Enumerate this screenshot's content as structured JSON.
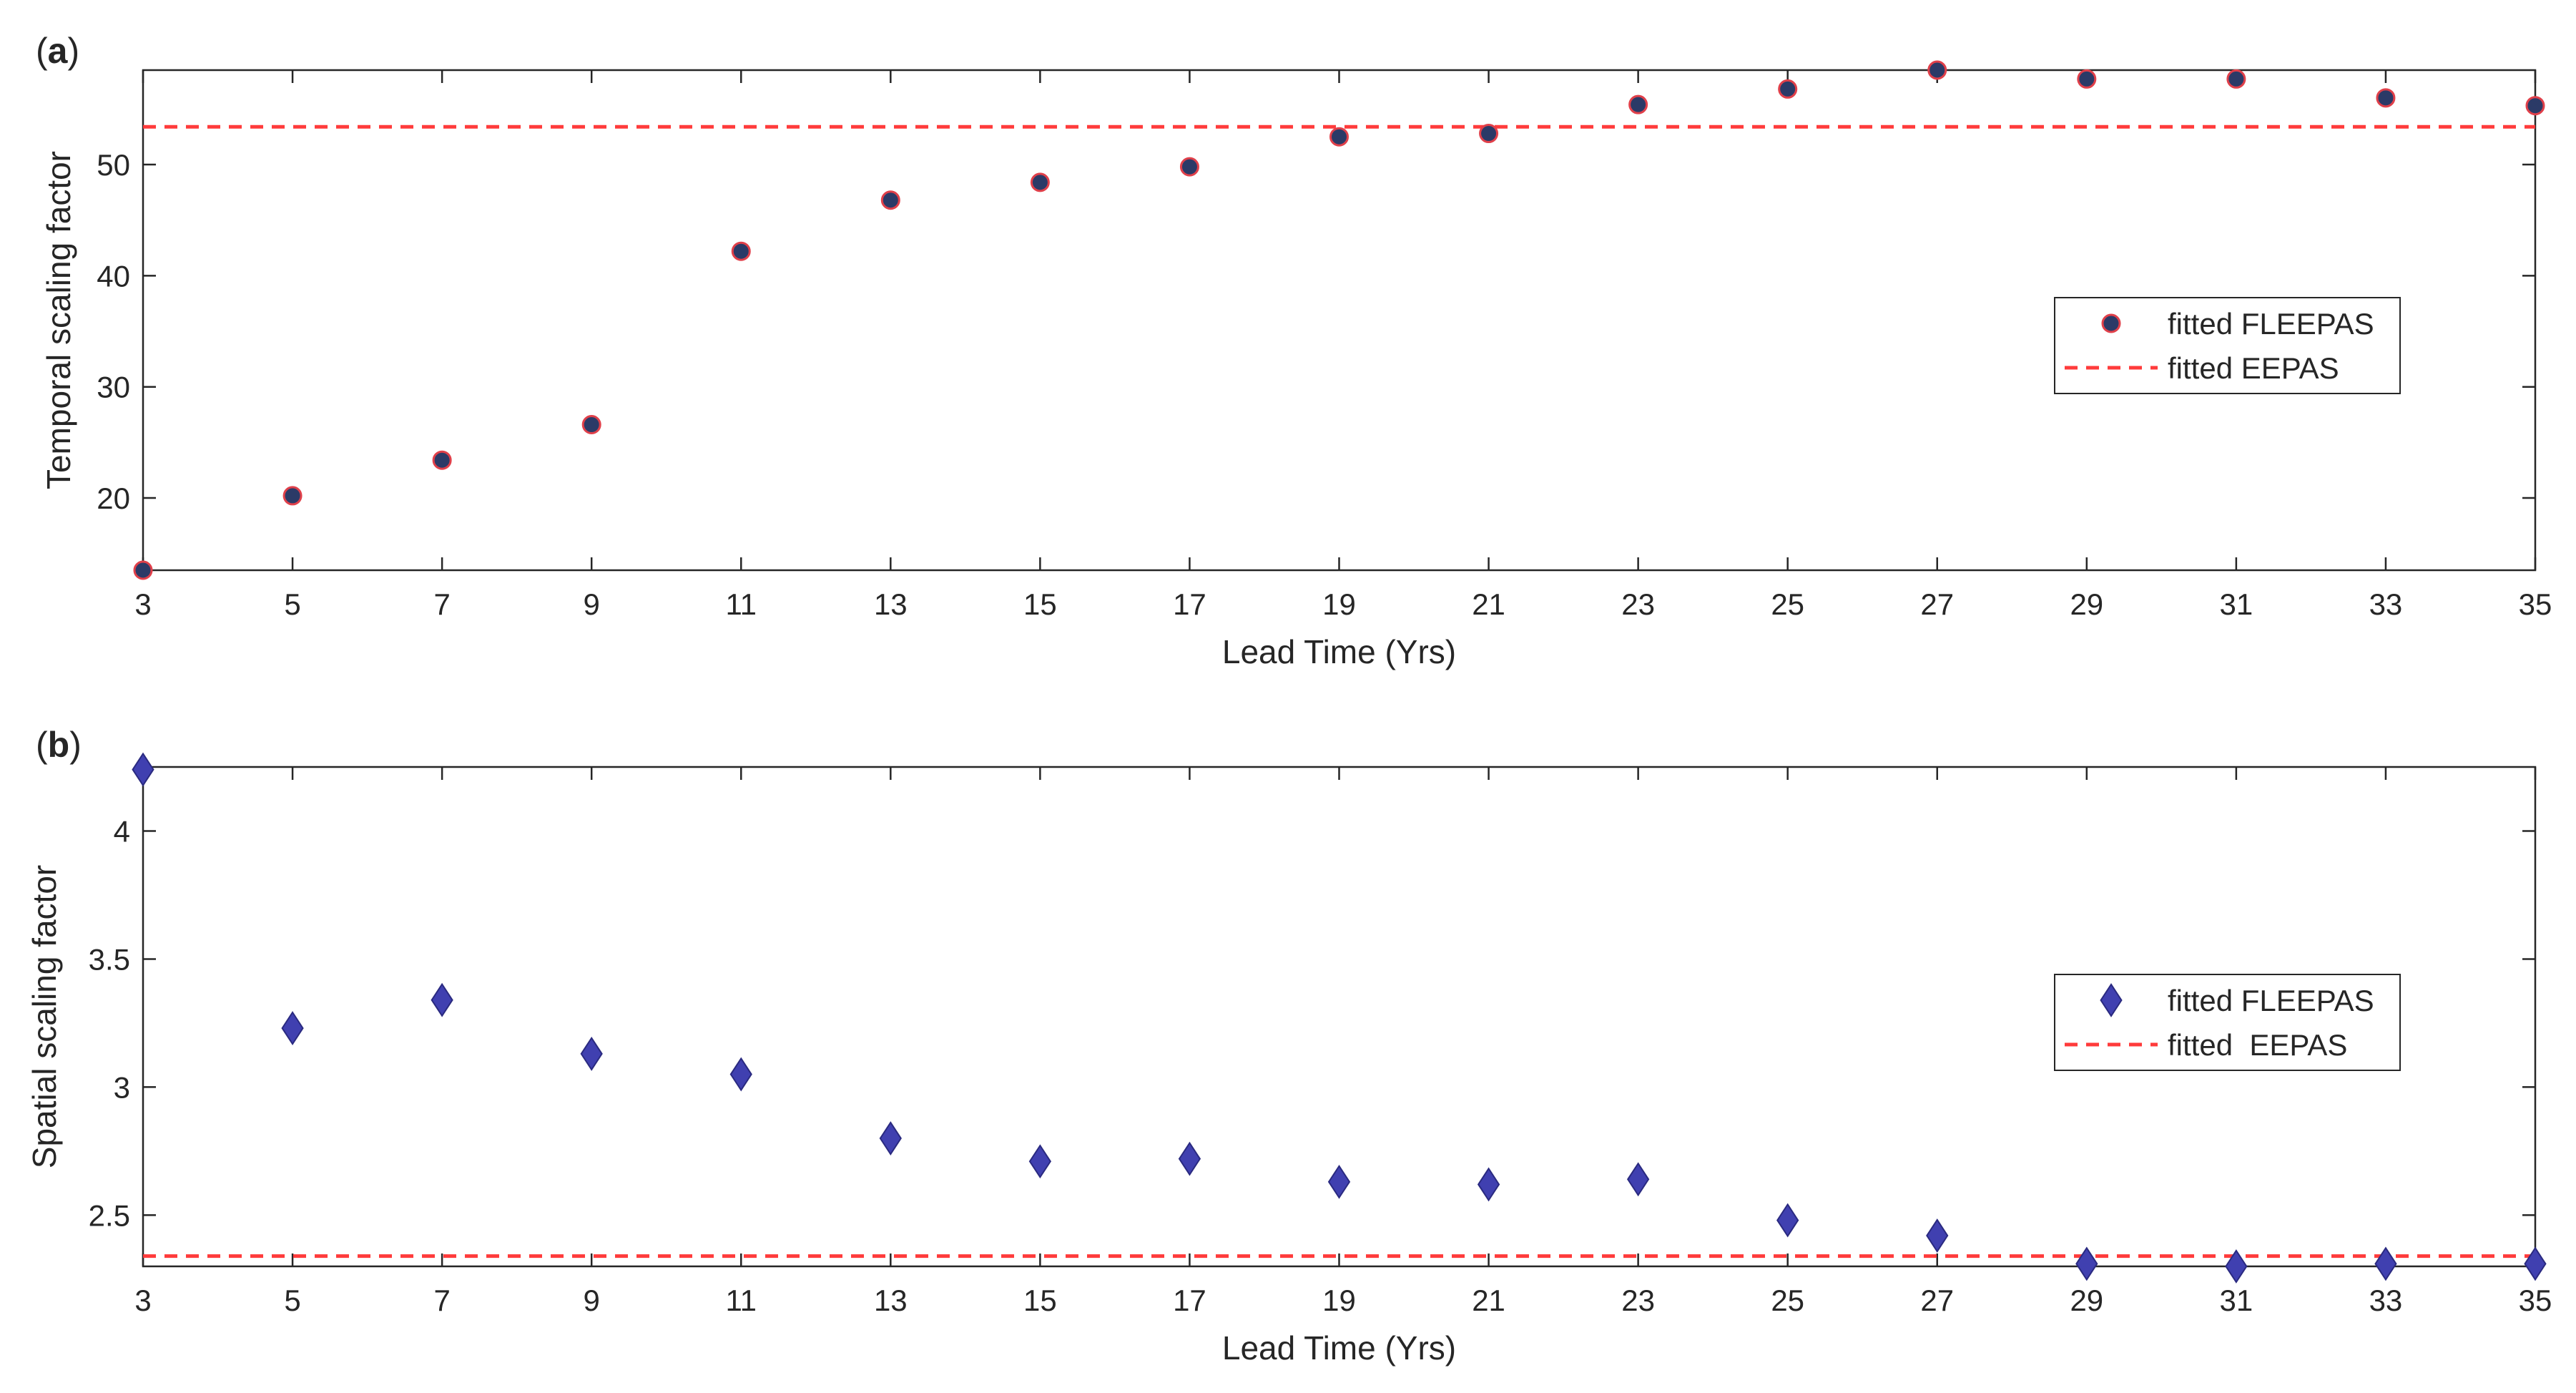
{
  "chart_data": [
    {
      "type": "scatter",
      "panel_label": "(a)",
      "panel_letter": "a",
      "xlabel": "Lead Time (Yrs)",
      "ylabel": "Temporal scaling factor",
      "xlim": [
        3,
        35
      ],
      "ylim": [
        13.5,
        58.5
      ],
      "x_ticks": [
        3,
        5,
        7,
        9,
        11,
        13,
        15,
        17,
        19,
        21,
        23,
        25,
        27,
        29,
        31,
        33,
        35
      ],
      "y_ticks": [
        20,
        30,
        40,
        50
      ],
      "series": [
        {
          "name": "fitted FLEEPAS",
          "marker": "circle",
          "x": [
            3,
            5,
            7,
            9,
            11,
            13,
            15,
            17,
            19,
            21,
            23,
            25,
            27,
            29,
            31,
            33,
            35
          ],
          "y": [
            13.5,
            20.2,
            23.4,
            26.6,
            42.2,
            46.8,
            48.4,
            49.8,
            52.5,
            52.8,
            55.4,
            56.8,
            58.5,
            57.7,
            57.7,
            56.0,
            55.3
          ]
        },
        {
          "name": "fitted EEPAS",
          "type": "hline",
          "y": 53.4
        }
      ],
      "legend": [
        "fitted FLEEPAS",
        "fitted EEPAS"
      ],
      "legend_position": "right"
    },
    {
      "type": "scatter",
      "panel_label": "(b)",
      "panel_letter": "b",
      "xlabel": "Lead Time (Yrs)",
      "ylabel": "Spatial scaling factor",
      "xlim": [
        3,
        35
      ],
      "ylim": [
        2.3,
        4.25
      ],
      "x_ticks": [
        3,
        5,
        7,
        9,
        11,
        13,
        15,
        17,
        19,
        21,
        23,
        25,
        27,
        29,
        31,
        33,
        35
      ],
      "y_ticks": [
        2.5,
        3,
        3.5,
        4
      ],
      "series": [
        {
          "name": "fitted FLEEPAS",
          "marker": "diamond",
          "x": [
            3,
            5,
            7,
            9,
            11,
            13,
            15,
            17,
            19,
            21,
            23,
            25,
            27,
            29,
            31,
            33,
            35
          ],
          "y": [
            4.24,
            3.23,
            3.34,
            3.13,
            3.05,
            2.8,
            2.71,
            2.72,
            2.63,
            2.62,
            2.64,
            2.48,
            2.42,
            2.31,
            2.3,
            2.31,
            2.31
          ]
        },
        {
          "name": "fitted  EEPAS",
          "type": "hline",
          "y": 2.34
        }
      ],
      "legend": [
        "fitted FLEEPAS",
        "fitted  EEPAS"
      ],
      "legend_position": "right"
    }
  ],
  "colors": {
    "axis": "#262626",
    "circle_fill": "#2b3a67",
    "circle_edge": "#e0404a",
    "diamond_fill": "#4040b0",
    "diamond_edge": "#2a2a80",
    "hline": "#ff3b3b"
  }
}
